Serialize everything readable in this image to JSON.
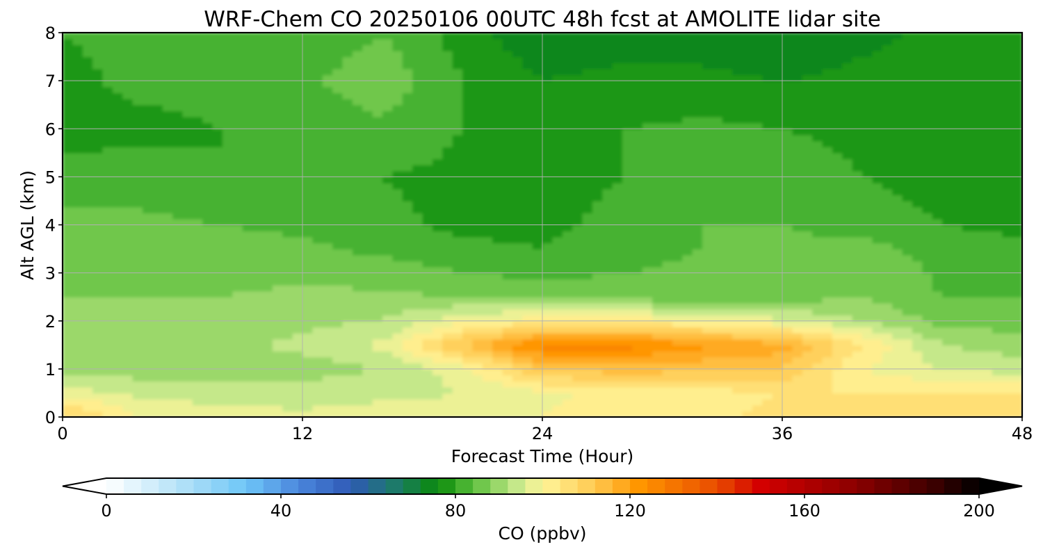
{
  "chart_data": {
    "type": "heatmap",
    "title": "WRF-Chem CO  20250106 00UTC 48h fcst at AMOLITE lidar site",
    "xlabel": "Forecast Time (Hour)",
    "ylabel": "Alt AGL (km)",
    "xlim": [
      0,
      48
    ],
    "ylim": [
      0,
      8
    ],
    "xticks": [
      "0",
      "12",
      "24",
      "36",
      "48"
    ],
    "yticks": [
      "0",
      "1",
      "2",
      "3",
      "4",
      "5",
      "6",
      "7",
      "8"
    ],
    "grid": true,
    "variable": "CO",
    "units": "ppbv",
    "colorbar": {
      "label": "CO  (ppbv)",
      "orientation": "horizontal",
      "location": "bottom",
      "range": [
        0,
        200
      ],
      "step": 4,
      "extend": "both",
      "ticks": [
        "0",
        "40",
        "80",
        "120",
        "160",
        "200"
      ],
      "colors": {
        "0": "#ffffff",
        "20": "#a6dcf7",
        "32": "#6ec6f7",
        "44": "#4b86dc",
        "56": "#2f5ab5",
        "66": "#1d7a6a",
        "76": "#0a8a0a",
        "84": "#5bbf3c",
        "94": "#c5e88a",
        "100": "#fff59a",
        "112": "#ffc850",
        "122": "#ff9600",
        "140": "#e84c00",
        "150": "#d30000",
        "172": "#8a0000",
        "190": "#3a0000",
        "200": "#000000"
      }
    },
    "x": [
      0,
      4,
      8,
      12,
      16,
      20,
      24,
      28,
      32,
      36,
      40,
      44,
      48
    ],
    "y": [
      0,
      0.5,
      1,
      1.5,
      2,
      2.5,
      3,
      3.5,
      4,
      5,
      6,
      7,
      8
    ],
    "z": [
      [
        110,
        100,
        98,
        97,
        98,
        98,
        100,
        103,
        103,
        105,
        106,
        106,
        106
      ],
      [
        98,
        95,
        94,
        94,
        95,
        96,
        99,
        101,
        102,
        104,
        104,
        104,
        104
      ],
      [
        90,
        90,
        89,
        90,
        92,
        98,
        112,
        114,
        113,
        112,
        100,
        96,
        94
      ],
      [
        91,
        91,
        91,
        93,
        97,
        113,
        126,
        126,
        121,
        118,
        104,
        92,
        90
      ],
      [
        89,
        89,
        89,
        91,
        92,
        99,
        103,
        103,
        100,
        97,
        92,
        87,
        86
      ],
      [
        88,
        88,
        88,
        89,
        89,
        88,
        87,
        86,
        86,
        86,
        88,
        84,
        84
      ],
      [
        87,
        87,
        87,
        87,
        86,
        84,
        83,
        84,
        85,
        86,
        88,
        83,
        82
      ],
      [
        86,
        86,
        86,
        85,
        83,
        81,
        80,
        82,
        84,
        85,
        86,
        82,
        81
      ],
      [
        85,
        85,
        84,
        83,
        81,
        79,
        79,
        81,
        84,
        84,
        82,
        80,
        79
      ],
      [
        82,
        82,
        80,
        80,
        80,
        79,
        79,
        80,
        83,
        82,
        80,
        78,
        78
      ],
      [
        78,
        79,
        80,
        81,
        83,
        80,
        79,
        80,
        81,
        80,
        79,
        77,
        77
      ],
      [
        79,
        81,
        81,
        83,
        87,
        80,
        76,
        77,
        77,
        76,
        77,
        78,
        78
      ],
      [
        80,
        81,
        80,
        81,
        84,
        78,
        73,
        74,
        74,
        72,
        75,
        77,
        77
      ]
    ]
  }
}
